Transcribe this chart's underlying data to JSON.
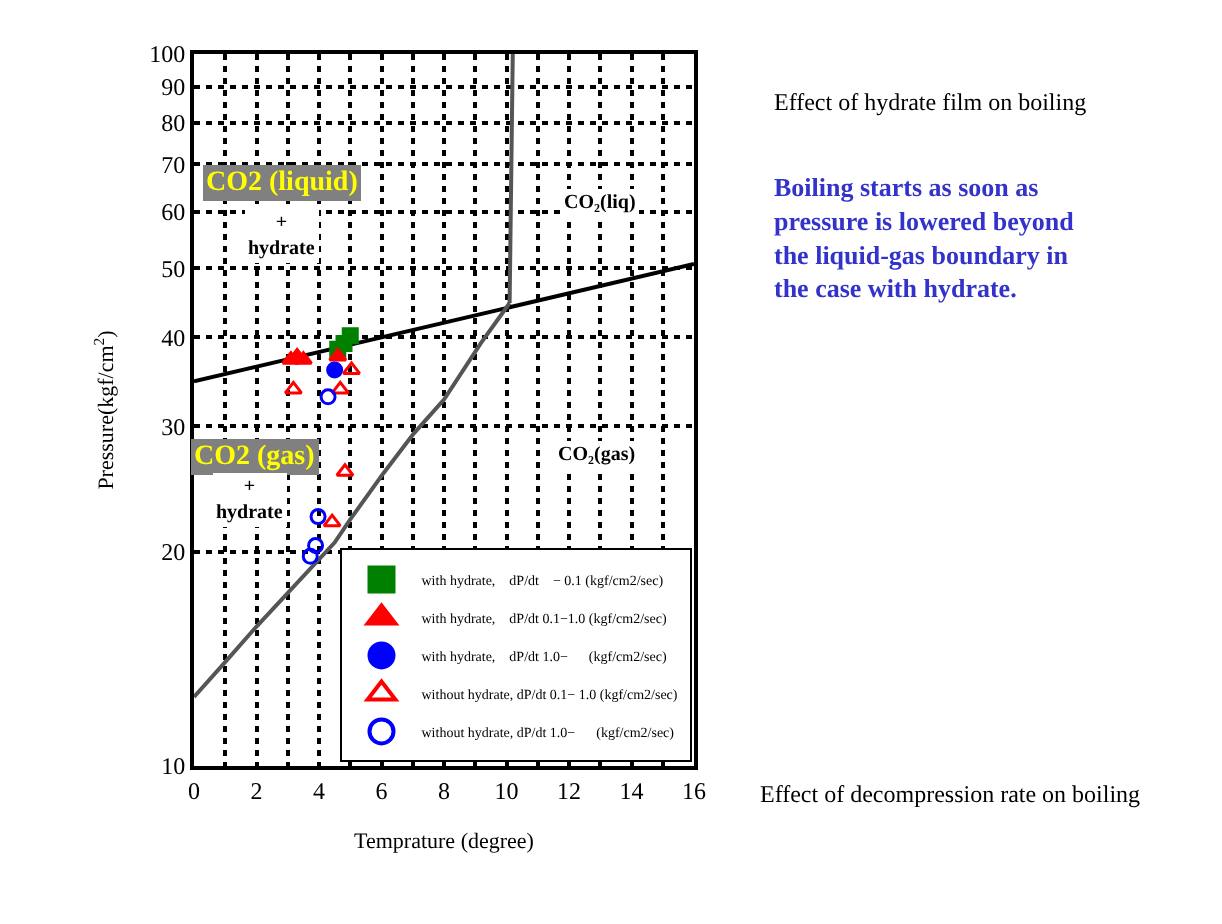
{
  "chart_data": {
    "type": "scatter",
    "xlabel": "Temprature (degree)",
    "ylabel": "Pressure(kgf/cm$^{2}$)",
    "log": "y",
    "grid": true,
    "legend": "bottom right",
    "xlim": [
      0,
      16
    ],
    "xticks": [
      0,
      {
        "value": 1,
        "label": null
      },
      2,
      {
        "value": 3,
        "label": null
      },
      4,
      {
        "value": 5,
        "label": null
      },
      6,
      {
        "value": 7,
        "label": null
      },
      8,
      {
        "value": 9,
        "label": null
      },
      10,
      {
        "value": 11,
        "label": null
      },
      12,
      {
        "value": 13,
        "label": null
      },
      14,
      {
        "value": 15,
        "label": null
      },
      16
    ],
    "ylim": [
      10,
      100
    ],
    "yticks": [
      10,
      20,
      30,
      40,
      50,
      60,
      70,
      80,
      90,
      100
    ],
    "series": [
      {
        "type": "line",
        "color": "#000000",
        "x": [
          0,
          16
        ],
        "values": [
          34.7,
          50.7
        ]
      },
      {
        "type": "line",
        "color": "#555555",
        "x": [
          10.1,
          10.2
        ],
        "values": [
          44.7,
          100
        ]
      },
      {
        "type": "line",
        "color": "#555555",
        "x": [
          0,
          0.94,
          2.0,
          4.5,
          5.0,
          6.07,
          7.03,
          8.0,
          9.17,
          10.1
        ],
        "values": [
          12.5,
          13.9,
          15.7,
          20.6,
          22.2,
          25.8,
          29.3,
          32.7,
          39.2,
          44.7
        ]
      },
      {
        "name": "with hydrate,    dP/dt    − 0.1 (kgf/cm2/sec)",
        "marker": "square",
        "color": "#008000",
        "x": [
          4.6,
          4.8,
          5.0
        ],
        "values": [
          38.5,
          39.2,
          40.2
        ]
      },
      {
        "name": "with hydrate,    dP/dt 0.1−1.0 (kgf/cm2/sec)",
        "marker": "triangle",
        "color": "#ff0000",
        "x": [
          3.1,
          3.3,
          3.5,
          4.6
        ],
        "values": [
          37.2,
          37.6,
          37.2,
          37.6
        ]
      },
      {
        "name": "with hydrate,    dP/dt 1.0−      (kgf/cm2/sec)",
        "marker": "circle",
        "color": "#0000ff",
        "x": [
          4.5
        ],
        "values": [
          36.0
        ]
      },
      {
        "name": "without hydrate, dP/dt 0.1− 1.0 (kgf/cm2/sec)",
        "marker": "triangle-open",
        "color": "#ff0000",
        "x": [
          3.18,
          4.68,
          5.04,
          4.83,
          4.42
        ],
        "values": [
          33.8,
          33.8,
          36.0,
          25.9,
          22.0
        ]
      },
      {
        "name": "without hydrate, dP/dt 1.0−      (kgf/cm2/sec)",
        "marker": "circle-open",
        "color": "#0000ff",
        "x": [
          4.29,
          3.97,
          3.89,
          3.72
        ],
        "values": [
          33.0,
          22.4,
          20.4,
          19.7
        ]
      }
    ],
    "annotations": [
      "CO2 (liquid)",
      "+\nhydrate",
      "CO₂(liq)",
      "CO2 (gas)",
      "+\nhydrate",
      "CO₂(gas)",
      "Effect of hydrate film on boiling",
      "Boiling starts as soon as\npressure is lowered beyond\nthe liquid-gas boundary in\nthe case with hydrate.",
      "Effect of decompression rate on boiling"
    ]
  }
}
